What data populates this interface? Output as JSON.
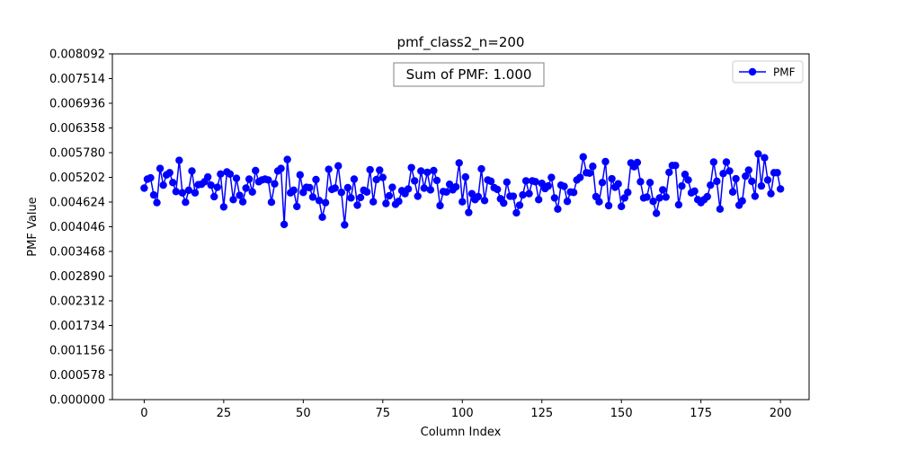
{
  "chart_data": {
    "type": "line",
    "title": "pmf_class2_n=200",
    "xlabel": "Column Index",
    "ylabel": "PMF Value",
    "xlim": [
      -10,
      209
    ],
    "ylim": [
      0,
      0.008092
    ],
    "x_ticks": [
      0,
      25,
      50,
      75,
      100,
      125,
      150,
      175,
      200
    ],
    "y_ticks": [
      "0.000000",
      "0.000578",
      "0.001156",
      "0.001734",
      "0.002312",
      "0.002890",
      "0.003468",
      "0.004046",
      "0.004624",
      "0.005202",
      "0.005780",
      "0.006358",
      "0.006936",
      "0.007514",
      "0.008092"
    ],
    "grid": false,
    "legend_position": "top-right",
    "annotation": "Sum of PMF: 1.000",
    "series": [
      {
        "name": "PMF",
        "color": "#0000ff",
        "marker": "circle",
        "values": [
          0.00495,
          0.00516,
          0.00519,
          0.00479,
          0.00461,
          0.00541,
          0.00502,
          0.00526,
          0.00531,
          0.00508,
          0.00487,
          0.0056,
          0.00484,
          0.00462,
          0.0049,
          0.00535,
          0.00484,
          0.00503,
          0.00504,
          0.0051,
          0.00521,
          0.00502,
          0.00475,
          0.00497,
          0.00528,
          0.00451,
          0.00533,
          0.00528,
          0.00468,
          0.00518,
          0.00478,
          0.00463,
          0.00495,
          0.00516,
          0.00486,
          0.00536,
          0.0051,
          0.00514,
          0.00516,
          0.00514,
          0.00462,
          0.00505,
          0.00535,
          0.00541,
          0.0041,
          0.00562,
          0.00484,
          0.0049,
          0.00452,
          0.00526,
          0.00485,
          0.00497,
          0.00496,
          0.00474,
          0.00515,
          0.00466,
          0.00427,
          0.00461,
          0.00539,
          0.00492,
          0.00495,
          0.00547,
          0.00485,
          0.00409,
          0.00496,
          0.00472,
          0.00516,
          0.00455,
          0.00473,
          0.0049,
          0.00486,
          0.00538,
          0.00463,
          0.00515,
          0.00537,
          0.0052,
          0.00459,
          0.00477,
          0.00497,
          0.00457,
          0.00464,
          0.00489,
          0.00482,
          0.00493,
          0.00543,
          0.00512,
          0.00476,
          0.00535,
          0.00495,
          0.00532,
          0.00491,
          0.00536,
          0.00513,
          0.00454,
          0.00487,
          0.00486,
          0.00504,
          0.00491,
          0.00498,
          0.00554,
          0.00463,
          0.00521,
          0.00438,
          0.00482,
          0.00468,
          0.00475,
          0.0054,
          0.00466,
          0.00514,
          0.00511,
          0.00496,
          0.00492,
          0.0047,
          0.0046,
          0.00509,
          0.00476,
          0.00476,
          0.00437,
          0.00455,
          0.00479,
          0.00512,
          0.00482,
          0.00512,
          0.0051,
          0.00468,
          0.00506,
          0.00494,
          0.005,
          0.0052,
          0.00472,
          0.00446,
          0.00502,
          0.00499,
          0.00464,
          0.00486,
          0.00485,
          0.00514,
          0.0052,
          0.00568,
          0.00531,
          0.0053,
          0.00546,
          0.00475,
          0.00463,
          0.00508,
          0.00557,
          0.00454,
          0.00517,
          0.00497,
          0.00505,
          0.00452,
          0.00472,
          0.00485,
          0.00554,
          0.00545,
          0.00555,
          0.0051,
          0.00472,
          0.00474,
          0.00508,
          0.00464,
          0.00436,
          0.00472,
          0.00491,
          0.00474,
          0.00532,
          0.00548,
          0.00548,
          0.00456,
          0.005,
          0.00527,
          0.00514,
          0.00484,
          0.00488,
          0.00468,
          0.00461,
          0.00468,
          0.00475,
          0.00502,
          0.00556,
          0.00511,
          0.00446,
          0.00529,
          0.00556,
          0.00535,
          0.00486,
          0.00517,
          0.00455,
          0.00465,
          0.00523,
          0.00537,
          0.00511,
          0.00476,
          0.00575,
          0.005,
          0.00566,
          0.00514,
          0.00482,
          0.00531,
          0.00531,
          0.00493
        ]
      }
    ]
  }
}
